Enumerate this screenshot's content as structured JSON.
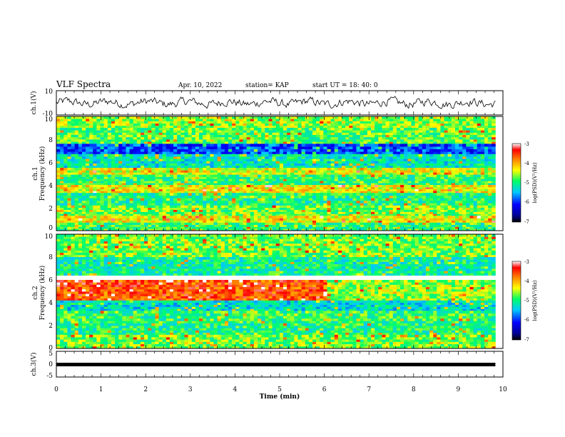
{
  "header": {
    "title": "VLF Spectra",
    "date": "Apr. 10, 2022",
    "station": "station= KAP",
    "start": "start  UT =   18: 40: 0"
  },
  "chart_data": [
    {
      "type": "line",
      "id": "ch1-waveform",
      "ylabel": "ch.1(V)",
      "ylim": [
        -10,
        10
      ],
      "yticks": [
        "10",
        "-10"
      ],
      "xlim": [
        0,
        10
      ],
      "x_end": 9.83,
      "series": [
        {
          "description": "noisy waveform around 0 V, peak-to-peak about +/-4 V",
          "mean": 0,
          "amplitude": 3.5
        }
      ]
    },
    {
      "type": "heatmap",
      "id": "ch1-spectrogram",
      "ylabel_top": "ch.1",
      "ylabel_bottom": "Frequency (kHz)",
      "ylim": [
        0,
        10
      ],
      "yticks": [
        "0",
        "2",
        "4",
        "6",
        "8",
        "10"
      ],
      "xlim": [
        0,
        10
      ],
      "x_end": 9.83,
      "colorbar": {
        "label": "log(PSD)(V²/Hz)",
        "range": [
          -7,
          -3
        ],
        "ticks": [
          "-3",
          "-4",
          "-5",
          "-6",
          "-7"
        ]
      },
      "bands_khz": [
        {
          "from": 9.0,
          "to": 10.0,
          "level": -4.6
        },
        {
          "from": 7.6,
          "to": 9.0,
          "level": -4.8
        },
        {
          "from": 6.7,
          "to": 7.6,
          "level": -5.9
        },
        {
          "from": 5.5,
          "to": 6.7,
          "level": -5.2
        },
        {
          "from": 4.9,
          "to": 5.5,
          "level": -4.4
        },
        {
          "from": 4.0,
          "to": 4.9,
          "level": -4.9
        },
        {
          "from": 3.3,
          "to": 4.0,
          "level": -4.3
        },
        {
          "from": 2.2,
          "to": 3.3,
          "level": -5.0
        },
        {
          "from": 1.3,
          "to": 2.2,
          "level": -4.7
        },
        {
          "from": 0.7,
          "to": 1.3,
          "level": -4.3
        },
        {
          "from": 0.0,
          "to": 0.7,
          "level": -4.9
        }
      ]
    },
    {
      "type": "heatmap",
      "id": "ch2-spectrogram",
      "ylabel_top": "ch.2",
      "ylabel_bottom": "Frequency (kHz)",
      "ylim": [
        0,
        10
      ],
      "yticks": [
        "0",
        "2",
        "4",
        "6",
        "8",
        "10"
      ],
      "xlim": [
        0,
        10
      ],
      "x_end": 9.83,
      "colorbar": {
        "label": "log(PSD)(V²/Hz)",
        "range": [
          -7,
          -3
        ],
        "ticks": [
          "-3",
          "-4",
          "-5",
          "-6",
          "-7"
        ]
      },
      "bands_khz": [
        {
          "from": 8.0,
          "to": 10.0,
          "level": -4.7
        },
        {
          "from": 6.4,
          "to": 8.0,
          "level": -5.1
        },
        {
          "from": 4.2,
          "to": 6.0,
          "level": -3.6
        },
        {
          "from": 3.3,
          "to": 4.2,
          "level": -5.3
        },
        {
          "from": 2.2,
          "to": 3.3,
          "level": -4.9
        },
        {
          "from": 1.2,
          "to": 2.2,
          "level": -5.0
        },
        {
          "from": 0.0,
          "to": 1.2,
          "level": -4.7
        }
      ],
      "change_at_min": 6.0
    },
    {
      "type": "line",
      "id": "ch3-waveform",
      "ylabel": "ch.3(V)",
      "ylim": [
        -5,
        5
      ],
      "yticks": [
        "5",
        "0",
        "-5"
      ],
      "xlim": [
        0,
        10
      ],
      "x_end": 9.83,
      "series": [
        {
          "description": "constant level",
          "value": 0
        }
      ]
    }
  ],
  "x_axis": {
    "label": "Time (min)",
    "ticks": [
      "0",
      "1",
      "2",
      "3",
      "4",
      "5",
      "6",
      "7",
      "8",
      "9",
      "10"
    ]
  },
  "colors": {
    "colormap": [
      "#000080",
      "#0000ff",
      "#00bfff",
      "#00ff80",
      "#ffff00",
      "#ff8000",
      "#ff0000",
      "#ffffff"
    ]
  }
}
